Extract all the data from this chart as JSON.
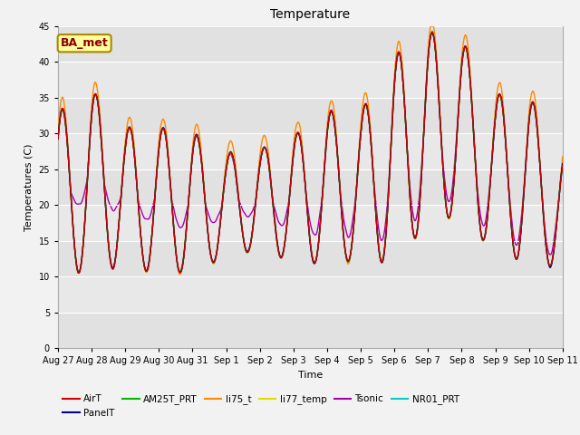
{
  "title": "Temperature",
  "xlabel": "Time",
  "ylabel": "Temperatures (C)",
  "ylim": [
    0,
    45
  ],
  "yticks": [
    0,
    5,
    10,
    15,
    20,
    25,
    30,
    35,
    40,
    45
  ],
  "annotation_text": "BA_met",
  "annotation_color": "#8B0000",
  "annotation_bg": "#FFFFA0",
  "series_colors": {
    "AirT": "#CC0000",
    "PanelT": "#000099",
    "AM25T_PRT": "#00BB00",
    "li75_t": "#FF8800",
    "li77_temp": "#DDDD00",
    "Tsonic": "#AA00AA",
    "NR01_PRT": "#00CCCC"
  },
  "x_tick_labels": [
    "Aug 27",
    "Aug 28",
    "Aug 29",
    "Aug 30",
    "Aug 31",
    "Sep 1",
    "Sep 2",
    "Sep 3",
    "Sep 4",
    "Sep 5",
    "Sep 6",
    "Sep 7",
    "Sep 8",
    "Sep 9",
    "Sep 10",
    "Sep 11"
  ],
  "figsize": [
    6.4,
    4.8
  ],
  "dpi": 100
}
